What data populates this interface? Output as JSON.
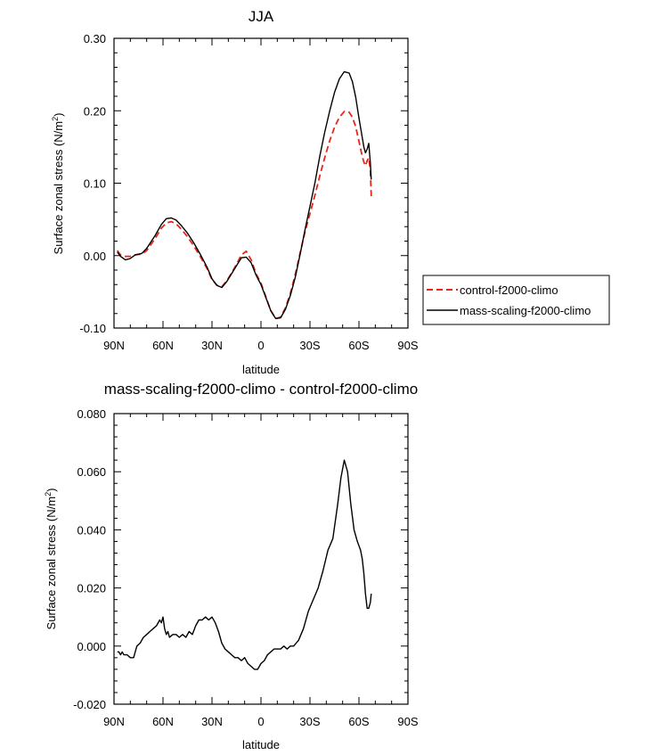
{
  "chart_data": [
    {
      "type": "line",
      "title": "JJA",
      "xlabel": "latitude",
      "ylabel": "Surface zonal stress (N/m",
      "ylabel_sup": "2",
      "ylabel_close": ")",
      "xlim": [
        90,
        -90
      ],
      "ylim": [
        -0.1,
        0.3
      ],
      "xticks": [
        90,
        60,
        30,
        0,
        -30,
        -60,
        -90
      ],
      "xtick_labels": [
        "90N",
        "60N",
        "30N",
        "0",
        "30S",
        "60S",
        "90S"
      ],
      "yticks": [
        -0.1,
        0.0,
        0.1,
        0.2,
        0.3
      ],
      "ytick_labels": [
        "-0.10",
        "0.00",
        "0.10",
        "0.20",
        "0.30"
      ],
      "legend_position": "right",
      "series": [
        {
          "name": "control-f2000-climo",
          "color": "#e8261c",
          "dash": "dashed",
          "x": [
            88,
            86,
            83,
            80,
            77,
            73,
            70,
            65,
            61,
            58,
            55,
            52,
            49,
            45,
            41,
            37,
            33,
            30,
            27,
            24,
            21,
            18,
            15,
            12,
            9,
            6,
            3,
            0,
            -3,
            -6,
            -9,
            -12,
            -15,
            -18,
            -21,
            -24,
            -27,
            -30,
            -33,
            -36,
            -39,
            -42,
            -45,
            -48,
            -51,
            -54,
            -56,
            -58,
            -60,
            -62,
            -63,
            -64,
            -65,
            -66,
            -67,
            -67.5
          ],
          "y": [
            0.007,
            0.001,
            -0.001,
            -0.001,
            0.001,
            0.002,
            0.007,
            0.023,
            0.038,
            0.045,
            0.047,
            0.044,
            0.037,
            0.026,
            0.013,
            -0.002,
            -0.018,
            -0.033,
            -0.041,
            -0.043,
            -0.035,
            -0.024,
            -0.012,
            0.001,
            0.006,
            -0.006,
            -0.025,
            -0.038,
            -0.057,
            -0.076,
            -0.087,
            -0.085,
            -0.072,
            -0.052,
            -0.026,
            0.004,
            0.033,
            0.058,
            0.083,
            0.11,
            0.135,
            0.158,
            0.177,
            0.191,
            0.199,
            0.198,
            0.191,
            0.178,
            0.158,
            0.137,
            0.129,
            0.124,
            0.131,
            0.135,
            0.118,
            0.082
          ]
        },
        {
          "name": "mass-scaling-f2000-climo",
          "color": "#000000",
          "dash": "solid",
          "x": [
            88,
            86,
            83,
            80,
            77,
            73,
            70,
            65,
            61,
            58,
            55,
            52,
            49,
            45,
            41,
            37,
            33,
            30,
            27,
            24,
            21,
            18,
            15,
            12,
            9,
            6,
            3,
            0,
            -3,
            -6,
            -9,
            -12,
            -15,
            -18,
            -21,
            -24,
            -27,
            -30,
            -33,
            -36,
            -39,
            -42,
            -45,
            -48,
            -51,
            -54,
            -56,
            -58,
            -60,
            -62,
            -63,
            -64,
            -65,
            -66,
            -67,
            -67.5
          ],
          "y": [
            0.005,
            -0.001,
            -0.006,
            -0.004,
            0.001,
            0.003,
            0.01,
            0.027,
            0.043,
            0.051,
            0.052,
            0.049,
            0.042,
            0.031,
            0.017,
            0.001,
            -0.016,
            -0.032,
            -0.041,
            -0.044,
            -0.036,
            -0.025,
            -0.014,
            -0.003,
            -0.002,
            -0.01,
            -0.027,
            -0.04,
            -0.058,
            -0.076,
            -0.087,
            -0.086,
            -0.074,
            -0.055,
            -0.03,
            0.002,
            0.036,
            0.068,
            0.1,
            0.137,
            0.17,
            0.199,
            0.225,
            0.244,
            0.254,
            0.252,
            0.24,
            0.219,
            0.19,
            0.163,
            0.15,
            0.142,
            0.147,
            0.155,
            0.128,
            0.105
          ]
        }
      ]
    },
    {
      "type": "line",
      "title": "mass-scaling-f2000-climo - control-f2000-climo",
      "xlabel": "latitude",
      "ylabel": "Surface zonal stress (N/m",
      "ylabel_sup": "2",
      "ylabel_close": ")",
      "xlim": [
        90,
        -90
      ],
      "ylim": [
        -0.02,
        0.08
      ],
      "xticks": [
        90,
        60,
        30,
        0,
        -30,
        -60,
        -90
      ],
      "xtick_labels": [
        "90N",
        "60N",
        "30N",
        "0",
        "30S",
        "60S",
        "90S"
      ],
      "yticks": [
        -0.02,
        0.0,
        0.02,
        0.04,
        0.06,
        0.08
      ],
      "ytick_labels": [
        "-0.020",
        "0.000",
        "0.020",
        "0.040",
        "0.060",
        "0.080"
      ],
      "series": [
        {
          "name": "mass-scaling-f2000-climo - control-f2000-climo",
          "color": "#000000",
          "dash": "solid",
          "x": [
            88,
            87,
            86,
            85,
            84,
            82,
            80,
            78,
            77,
            76,
            74,
            72,
            70,
            68,
            66,
            64,
            62,
            61,
            60,
            59,
            58,
            57,
            56,
            54,
            52,
            50,
            48,
            46,
            44,
            42,
            40,
            38,
            36,
            34,
            32,
            30,
            28,
            26,
            24,
            22,
            20,
            18,
            16,
            14,
            12,
            10,
            8,
            6,
            4,
            2,
            0,
            -2,
            -4,
            -6,
            -8,
            -10,
            -12,
            -14,
            -16,
            -18,
            -20,
            -23,
            -26,
            -29,
            -32,
            -35,
            -38,
            -41,
            -44,
            -47,
            -49,
            -51,
            -53,
            -55,
            -57,
            -59,
            -61,
            -62,
            -63,
            -64,
            -65,
            -66,
            -67,
            -67.5
          ],
          "y": [
            -0.002,
            -0.002,
            -0.003,
            -0.002,
            -0.003,
            -0.003,
            -0.004,
            -0.004,
            -0.002,
            0.0,
            0.001,
            0.003,
            0.004,
            0.005,
            0.006,
            0.007,
            0.009,
            0.008,
            0.01,
            0.006,
            0.004,
            0.005,
            0.003,
            0.004,
            0.004,
            0.003,
            0.004,
            0.003,
            0.005,
            0.004,
            0.007,
            0.009,
            0.009,
            0.01,
            0.009,
            0.01,
            0.008,
            0.005,
            0.001,
            -0.001,
            -0.002,
            -0.003,
            -0.004,
            -0.004,
            -0.005,
            -0.004,
            -0.006,
            -0.007,
            -0.008,
            -0.008,
            -0.006,
            -0.005,
            -0.003,
            -0.002,
            -0.001,
            -0.001,
            -0.001,
            0.0,
            -0.001,
            0.0,
            0.0,
            0.002,
            0.006,
            0.012,
            0.016,
            0.02,
            0.026,
            0.033,
            0.037,
            0.049,
            0.058,
            0.064,
            0.06,
            0.049,
            0.04,
            0.036,
            0.033,
            0.03,
            0.025,
            0.018,
            0.013,
            0.013,
            0.015,
            0.018
          ]
        }
      ]
    }
  ]
}
